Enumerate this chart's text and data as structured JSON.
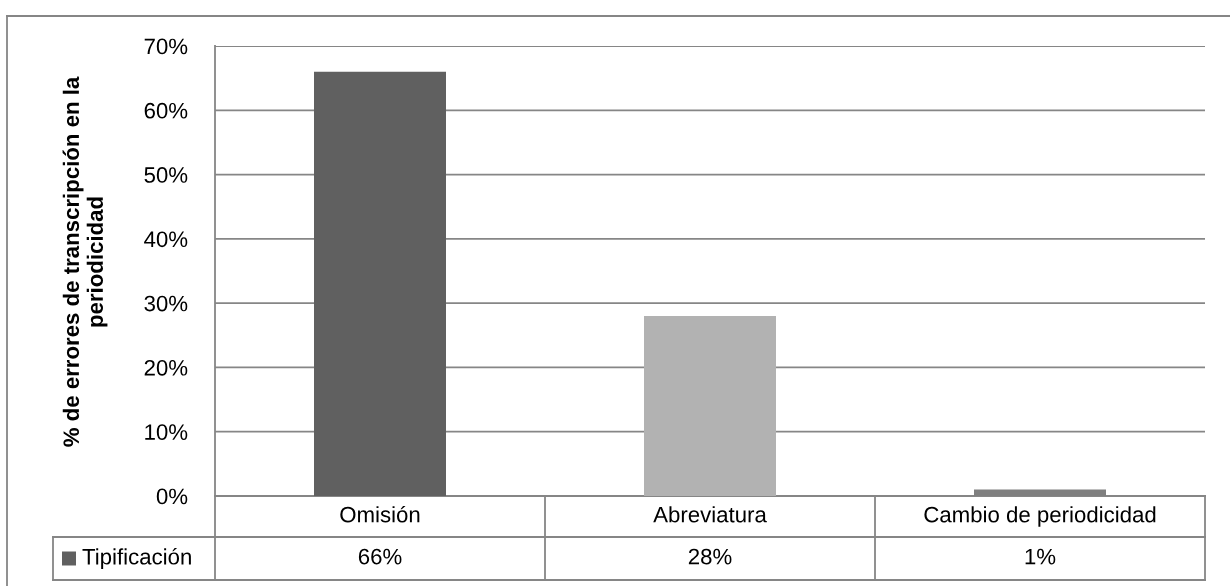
{
  "chart_data": {
    "type": "bar",
    "ylabel": "% de errores de transcripción en la\nperiodicidad",
    "categories": [
      "Omisión",
      "Abreviatura",
      "Cambio de periodicidad"
    ],
    "series": [
      {
        "name": "Tipificación",
        "color": "#606060",
        "colors": [
          "#606060",
          "#b2b2b2",
          "#7f7f7f"
        ],
        "values": [
          66,
          28,
          1
        ],
        "value_labels": [
          "66%",
          "28%",
          "1%"
        ]
      }
    ],
    "ylim": [
      0,
      70
    ],
    "yticks": [
      {
        "value": 0,
        "label": "0%"
      },
      {
        "value": 10,
        "label": "10%"
      },
      {
        "value": 20,
        "label": "20%"
      },
      {
        "value": 30,
        "label": "30%"
      },
      {
        "value": 40,
        "label": "40%"
      },
      {
        "value": 50,
        "label": "50%"
      },
      {
        "value": 60,
        "label": "60%"
      },
      {
        "value": 70,
        "label": "70%"
      }
    ],
    "grid": "y"
  }
}
